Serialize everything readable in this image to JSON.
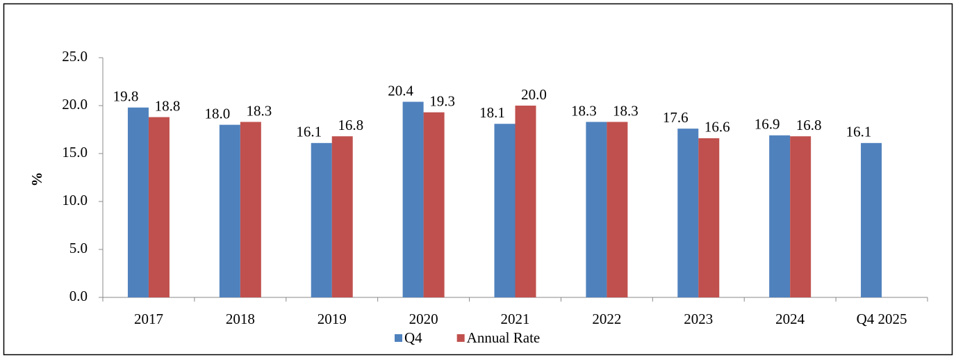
{
  "chart_data": {
    "type": "bar",
    "y_label": "%",
    "categories": [
      "2017",
      "2018",
      "2019",
      "2020",
      "2021",
      "2022",
      "2023",
      "2024",
      "Q4 2025"
    ],
    "series": [
      {
        "name": "Q4",
        "color": "#4f81bd",
        "values": [
          19.8,
          18.0,
          16.1,
          20.4,
          18.1,
          18.3,
          17.6,
          16.9,
          16.1
        ],
        "value_labels": [
          "19.8",
          "18.0",
          "16.1",
          "20.4",
          "18.1",
          "18.3",
          "17.6",
          "16.9",
          "16.1"
        ]
      },
      {
        "name": "Annual Rate",
        "color": "#c0504d",
        "values": [
          18.8,
          18.3,
          16.8,
          19.3,
          20.0,
          18.3,
          16.6,
          16.8,
          null
        ],
        "value_labels": [
          "18.8",
          "18.3",
          "16.8",
          "19.3",
          "20.0",
          "18.3",
          "16.6",
          "16.8",
          null
        ]
      }
    ],
    "ylim": [
      0,
      25
    ],
    "yticks": [
      {
        "value": 0,
        "label": "0.0"
      },
      {
        "value": 5,
        "label": "5.0"
      },
      {
        "value": 10,
        "label": "10.0"
      },
      {
        "value": 15,
        "label": "15.0"
      },
      {
        "value": 20,
        "label": "20.0"
      },
      {
        "value": 25,
        "label": "25.0"
      }
    ],
    "legend": "bottom"
  }
}
